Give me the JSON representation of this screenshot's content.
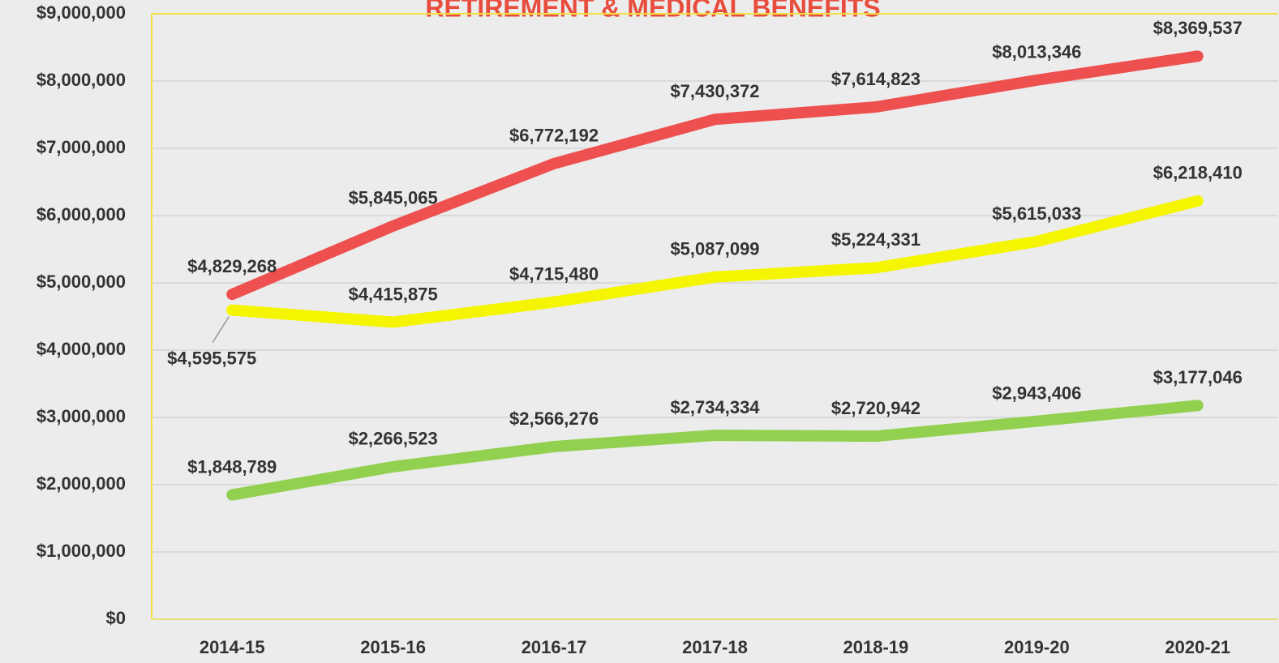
{
  "chart_data": {
    "type": "line",
    "title": "RETIREMENT & MEDICAL BENEFITS",
    "categories": [
      "2014-15",
      "2015-16",
      "2016-17",
      "2017-18",
      "2018-19",
      "2019-20",
      "2020-21"
    ],
    "series": [
      {
        "color": "#ee5050",
        "values": [
          4829268,
          5845065,
          6772192,
          7430372,
          7614823,
          8013346,
          8369537
        ],
        "value_labels": [
          "$4,829,268",
          "$5,845,065",
          "$6,772,192",
          "$7,430,372",
          "$7,614,823",
          "$8,013,346",
          "$8,369,537"
        ]
      },
      {
        "color": "#f5f500",
        "values": [
          4595575,
          4415875,
          4715480,
          5087099,
          5224331,
          5615033,
          6218410
        ],
        "value_labels": [
          "$4,595,575",
          "$4,415,875",
          "$4,715,480",
          "$5,087,099",
          "$5,224,331",
          "$5,615,033",
          "$6,218,410"
        ]
      },
      {
        "color": "#92d050",
        "values": [
          1848789,
          2266523,
          2566276,
          2734334,
          2720942,
          2943406,
          3177046
        ],
        "value_labels": [
          "$1,848,789",
          "$2,266,523",
          "$2,566,276",
          "$2,734,334",
          "$2,720,942",
          "$2,943,406",
          "$3,177,046"
        ]
      }
    ],
    "ylim": [
      0,
      9000000
    ],
    "yticks": [
      {
        "value": 0,
        "label": "$0"
      },
      {
        "value": 1000000,
        "label": "$1,000,000"
      },
      {
        "value": 2000000,
        "label": "$2,000,000"
      },
      {
        "value": 3000000,
        "label": "$3,000,000"
      },
      {
        "value": 4000000,
        "label": "$4,000,000"
      },
      {
        "value": 5000000,
        "label": "$5,000,000"
      },
      {
        "value": 6000000,
        "label": "$6,000,000"
      },
      {
        "value": 7000000,
        "label": "$7,000,000"
      },
      {
        "value": 8000000,
        "label": "$8,000,000"
      },
      {
        "value": 9000000,
        "label": "$9,000,000"
      }
    ],
    "grid": true
  }
}
